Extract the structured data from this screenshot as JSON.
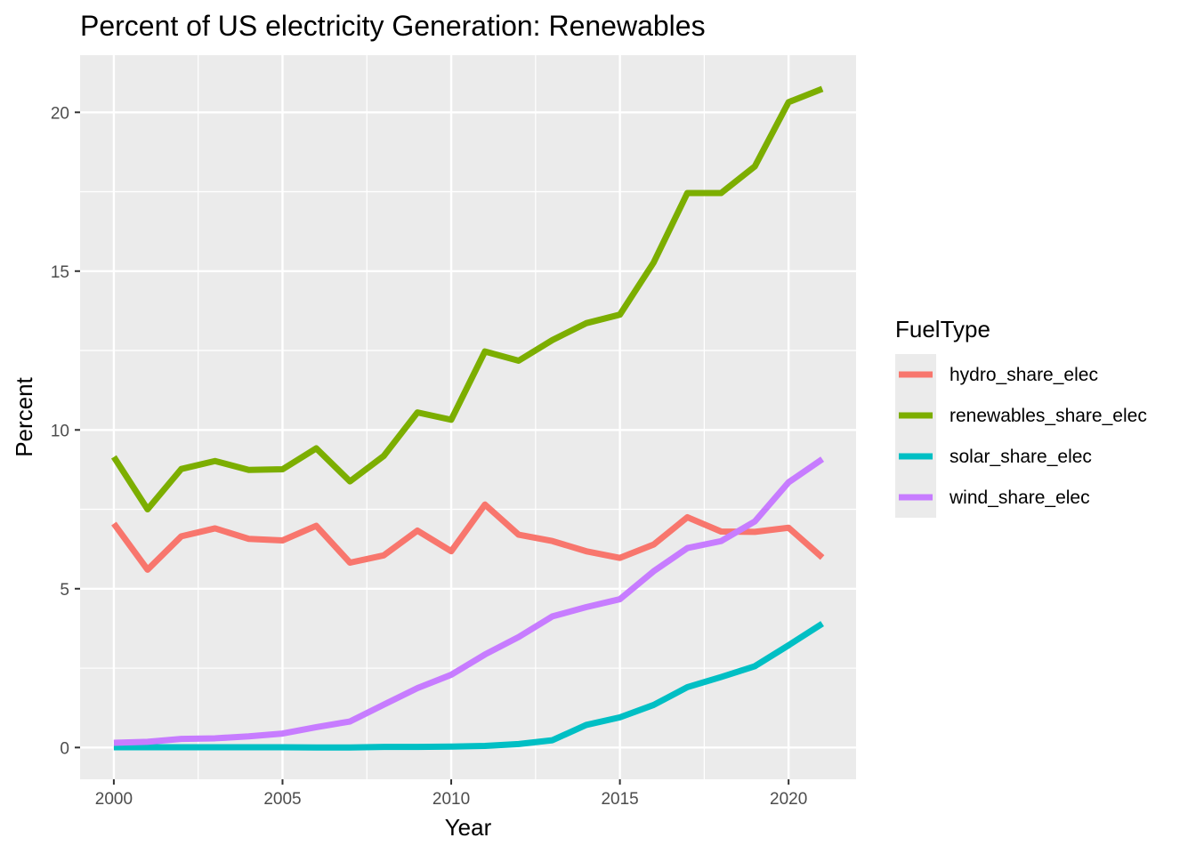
{
  "chart_data": {
    "type": "line",
    "title": "Percent of US electricity Generation: Renewables",
    "xlabel": "Year",
    "ylabel": "Percent",
    "xlim": [
      1999.0,
      2022.0
    ],
    "ylim": [
      -1.0,
      21.8
    ],
    "x_ticks": [
      2000,
      2005,
      2010,
      2015,
      2020
    ],
    "y_ticks": [
      0,
      5,
      10,
      15,
      20
    ],
    "grid": true,
    "legend": {
      "title": "FuelType",
      "position": "right"
    },
    "x": [
      2000,
      2001,
      2002,
      2003,
      2004,
      2005,
      2006,
      2007,
      2008,
      2009,
      2010,
      2011,
      2012,
      2013,
      2014,
      2015,
      2016,
      2017,
      2018,
      2019,
      2020,
      2021
    ],
    "series": [
      {
        "name": "hydro_share_elec",
        "color": "#F8766D",
        "values": [
          7.05,
          5.6,
          6.65,
          6.9,
          6.57,
          6.52,
          6.98,
          5.82,
          6.05,
          6.83,
          6.18,
          7.65,
          6.7,
          6.5,
          6.18,
          5.97,
          6.39,
          7.25,
          6.8,
          6.79,
          6.92,
          5.98
        ]
      },
      {
        "name": "renewables_share_elec",
        "color": "#7CAE00",
        "values": [
          9.15,
          7.5,
          8.77,
          9.02,
          8.74,
          8.76,
          9.42,
          8.38,
          9.18,
          10.55,
          10.32,
          12.47,
          12.18,
          12.83,
          13.36,
          13.63,
          15.27,
          17.46,
          17.46,
          18.3,
          20.32,
          20.74
        ]
      },
      {
        "name": "solar_share_elec",
        "color": "#00BFC4",
        "values": [
          0.01,
          0.01,
          0.01,
          0.01,
          0.01,
          0.01,
          0.0,
          0.0,
          0.02,
          0.02,
          0.03,
          0.05,
          0.11,
          0.23,
          0.71,
          0.95,
          1.34,
          1.9,
          2.22,
          2.56,
          3.22,
          3.9
        ]
      },
      {
        "name": "wind_share_elec",
        "color": "#C77CFF",
        "values": [
          0.15,
          0.18,
          0.27,
          0.29,
          0.35,
          0.44,
          0.64,
          0.82,
          1.35,
          1.87,
          2.29,
          2.93,
          3.48,
          4.13,
          4.42,
          4.67,
          5.55,
          6.28,
          6.5,
          7.12,
          8.35,
          9.08
        ]
      }
    ]
  }
}
